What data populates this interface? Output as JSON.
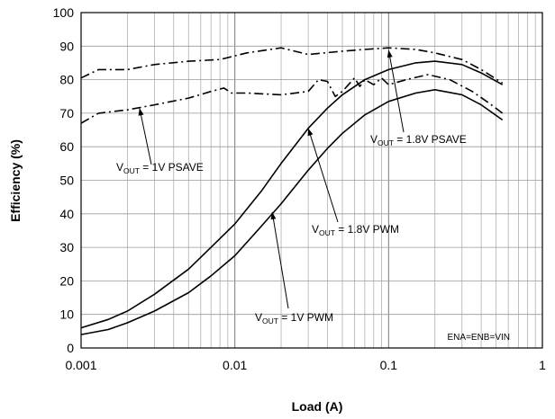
{
  "chart_data": {
    "type": "line",
    "xlabel": "Load (A)",
    "ylabel": "Efficiency (%)",
    "xscale": "log",
    "xlim": [
      0.001,
      1
    ],
    "ylim": [
      0,
      100
    ],
    "grid": true,
    "x_tick_labels": [
      "0.001",
      "0.01",
      "0.1",
      "1"
    ],
    "y_tick_labels": [
      "0",
      "10",
      "20",
      "30",
      "40",
      "50",
      "60",
      "70",
      "80",
      "90",
      "100"
    ],
    "annotations": {
      "psave_1v": {
        "pre": "V",
        "sub": "OUT",
        "post": " = 1V PSAVE"
      },
      "psave_18v": {
        "pre": "V",
        "sub": "OUT",
        "post": " = 1.8V PSAVE"
      },
      "pwm_18v": {
        "pre": "V",
        "sub": "OUT",
        "post": " = 1.8V PWM"
      },
      "pwm_1v": {
        "pre": "V",
        "sub": "OUT",
        "post": " = 1V PWM"
      },
      "condition": "ENA=ENB=VIN"
    },
    "series": [
      {
        "key": "psave_18v",
        "style": "dashdot",
        "x": [
          0.001,
          0.0013,
          0.002,
          0.003,
          0.005,
          0.008,
          0.012,
          0.02,
          0.03,
          0.05,
          0.07,
          0.1,
          0.15,
          0.2,
          0.3,
          0.4,
          0.55
        ],
        "y": [
          80.5,
          83,
          83,
          84.5,
          85.5,
          86,
          88,
          89.5,
          87.5,
          88.5,
          89,
          89.5,
          89,
          88,
          86,
          83,
          79
        ]
      },
      {
        "key": "psave_1v",
        "style": "dashdot",
        "x": [
          0.001,
          0.0013,
          0.002,
          0.003,
          0.005,
          0.007,
          0.0085,
          0.0095,
          0.012,
          0.02,
          0.03,
          0.035,
          0.04,
          0.045,
          0.05,
          0.06,
          0.065,
          0.07,
          0.08,
          0.09,
          0.1,
          0.13,
          0.18,
          0.25,
          0.35,
          0.45,
          0.55
        ],
        "y": [
          67,
          70,
          71,
          72.5,
          74.5,
          76.5,
          77.5,
          76,
          76,
          75.5,
          76.5,
          80,
          79.5,
          75,
          76.5,
          80.5,
          78,
          80,
          78.5,
          80.5,
          78.5,
          80,
          81.5,
          80,
          76.5,
          73,
          70
        ]
      },
      {
        "key": "pwm_18v",
        "style": "solid",
        "x": [
          0.001,
          0.0015,
          0.002,
          0.003,
          0.005,
          0.007,
          0.01,
          0.015,
          0.02,
          0.03,
          0.04,
          0.05,
          0.07,
          0.1,
          0.15,
          0.2,
          0.3,
          0.4,
          0.55
        ],
        "y": [
          6,
          8.5,
          11,
          16,
          23.5,
          30,
          37,
          47,
          55,
          65.5,
          71.5,
          75.5,
          80,
          83,
          85,
          85.5,
          84.5,
          82,
          78.5
        ]
      },
      {
        "key": "pwm_1v",
        "style": "solid",
        "x": [
          0.001,
          0.0015,
          0.002,
          0.003,
          0.005,
          0.007,
          0.01,
          0.015,
          0.02,
          0.03,
          0.04,
          0.05,
          0.07,
          0.1,
          0.15,
          0.2,
          0.3,
          0.4,
          0.55
        ],
        "y": [
          4,
          5.5,
          7.5,
          11,
          16.5,
          21.5,
          27.5,
          36.5,
          43,
          53,
          59.5,
          64,
          69.5,
          73.5,
          76,
          77,
          75.5,
          72.5,
          68
        ]
      }
    ]
  }
}
